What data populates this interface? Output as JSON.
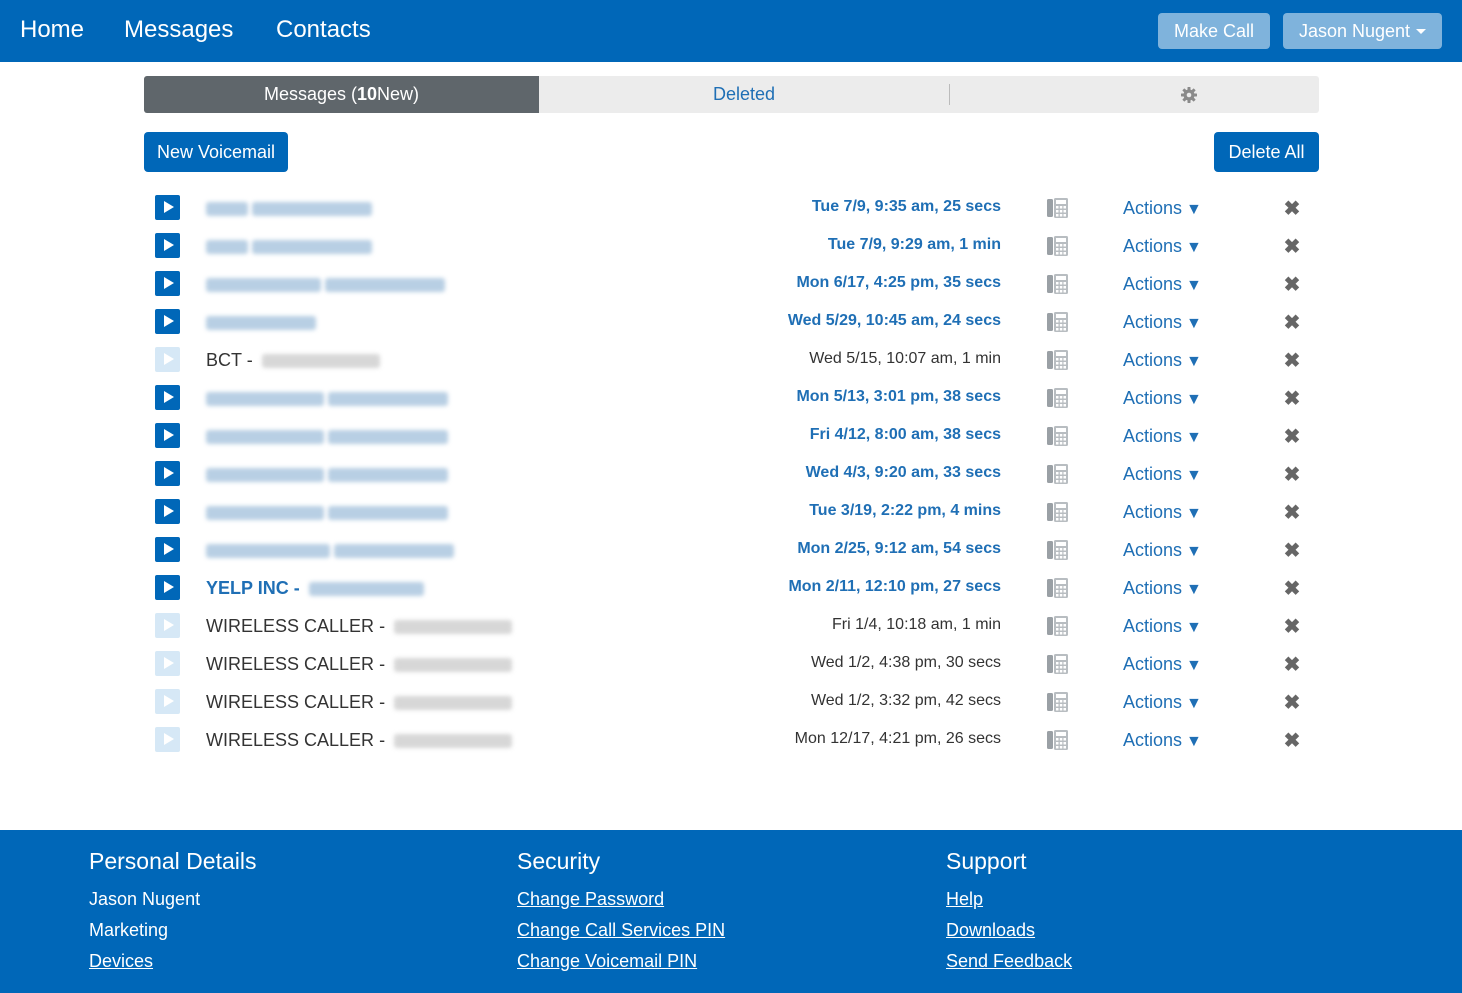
{
  "nav": {
    "home": "Home",
    "messages": "Messages",
    "contacts": "Contacts",
    "make_call": "Make Call",
    "user": "Jason Nugent"
  },
  "tabs": {
    "messages_prefix": "Messages (",
    "new_count": "10",
    "messages_suffix": " New)",
    "deleted": "Deleted",
    "settings_icon": "gear-icon"
  },
  "toolbar": {
    "new_voicemail": "New Voicemail",
    "delete_all": "Delete All"
  },
  "messages": [
    {
      "caller": "",
      "date": "Tue 7/9, 9:35 am, 25 secs",
      "new": true,
      "blur1": 42,
      "blur2": 120
    },
    {
      "caller": "",
      "date": "Tue 7/9, 9:29 am, 1 min",
      "new": true,
      "blur1": 42,
      "blur2": 120
    },
    {
      "caller": "",
      "date": "Mon 6/17, 4:25 pm, 35 secs",
      "new": true,
      "blur1": 115,
      "blur2": 120
    },
    {
      "caller": "",
      "date": "Wed 5/29, 10:45 am, 24 secs",
      "new": true,
      "blur1": 110,
      "blur2": 0
    },
    {
      "caller": "BCT",
      "date": "Wed 5/15, 10:07 am, 1 min",
      "new": false,
      "blur1": 0,
      "blur2": 118
    },
    {
      "caller": "",
      "date": "Mon 5/13, 3:01 pm, 38 secs",
      "new": true,
      "blur1": 118,
      "blur2": 120
    },
    {
      "caller": "",
      "date": "Fri 4/12, 8:00 am, 38 secs",
      "new": true,
      "blur1": 118,
      "blur2": 120
    },
    {
      "caller": "",
      "date": "Wed 4/3, 9:20 am, 33 secs",
      "new": true,
      "blur1": 118,
      "blur2": 120
    },
    {
      "caller": "",
      "date": "Tue 3/19, 2:22 pm, 4 mins",
      "new": true,
      "blur1": 118,
      "blur2": 120
    },
    {
      "caller": "",
      "date": "Mon 2/25, 9:12 am, 54 secs",
      "new": true,
      "blur1": 124,
      "blur2": 120
    },
    {
      "caller": "YELP INC",
      "date": "Mon 2/11, 12:10 pm, 27 secs",
      "new": true,
      "blur1": 0,
      "blur2": 115
    },
    {
      "caller": "WIRELESS CALLER",
      "date": "Fri 1/4, 10:18 am, 1 min",
      "new": false,
      "blur1": 0,
      "blur2": 118
    },
    {
      "caller": "WIRELESS CALLER",
      "date": "Wed 1/2, 4:38 pm, 30 secs",
      "new": false,
      "blur1": 0,
      "blur2": 118
    },
    {
      "caller": "WIRELESS CALLER",
      "date": "Wed 1/2, 3:32 pm, 42 secs",
      "new": false,
      "blur1": 0,
      "blur2": 118
    },
    {
      "caller": "WIRELESS CALLER",
      "date": "Mon 12/17, 4:21 pm, 26 secs",
      "new": false,
      "blur1": 0,
      "blur2": 118
    }
  ],
  "row_labels": {
    "actions": "Actions",
    "actions_caret": "▼",
    "delete": "✖",
    "separator": " - "
  },
  "footer": {
    "personal": {
      "title": "Personal Details",
      "name": "Jason Nugent",
      "dept": "Marketing",
      "devices": "Devices"
    },
    "security": {
      "title": "Security",
      "change_password": "Change Password",
      "change_call_pin": "Change Call Services PIN",
      "change_vm_pin": "Change Voicemail PIN"
    },
    "support": {
      "title": "Support",
      "help": "Help",
      "downloads": "Downloads",
      "send_feedback": "Send Feedback"
    }
  },
  "colors": {
    "brand": "#0067b8",
    "link": "#1f6fb5",
    "tab_active": "#5f666b"
  }
}
